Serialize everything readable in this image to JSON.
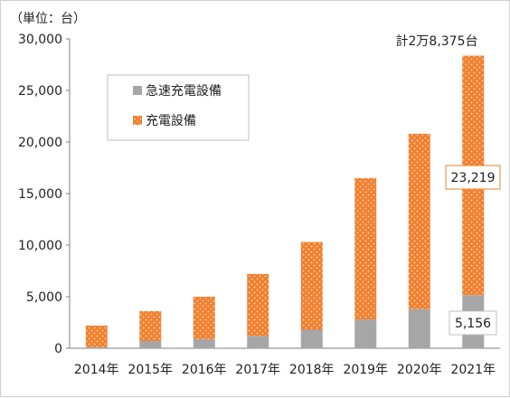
{
  "chart_data": {
    "type": "bar",
    "stacked": true,
    "unit_label": "（単位：台）",
    "categories": [
      "2014年",
      "2015年",
      "2016年",
      "2017年",
      "2018年",
      "2019年",
      "2020年",
      "2021年"
    ],
    "series": [
      {
        "name": "急速充電設備",
        "color": "#a6a6a6",
        "values": [
          100,
          700,
          900,
          1200,
          1800,
          2800,
          3800,
          5156
        ]
      },
      {
        "name": "充電設備",
        "color": "#f07f2e",
        "pattern": "dotted",
        "values": [
          2100,
          2900,
          4100,
          6000,
          8500,
          13700,
          17000,
          23219
        ]
      }
    ],
    "ylim": [
      0,
      30000
    ],
    "yticks": [
      "0",
      "5,000",
      "10,000",
      "15,000",
      "20,000",
      "25,000",
      "30,000"
    ],
    "grid": false,
    "legend_position": "top-left",
    "annotations": {
      "total": "計2万8,375台",
      "callout_charging": "23,219",
      "callout_quick": "5,156"
    }
  }
}
